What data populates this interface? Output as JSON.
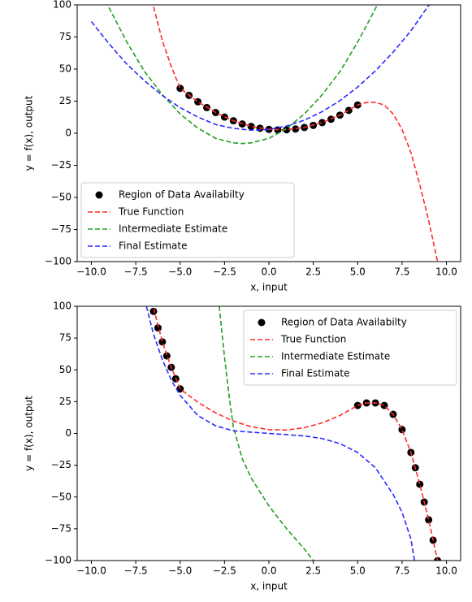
{
  "chart_data": [
    {
      "type": "line",
      "ylabel": "y = f(x), output",
      "xlabel": "x, input",
      "xlim": [
        -10.8,
        10.8
      ],
      "ylim": [
        -100,
        100
      ],
      "xticks": [
        {
          "value": -10,
          "label": "−10.0"
        },
        {
          "value": -7.5,
          "label": "−7.5"
        },
        {
          "value": -5,
          "label": "−5.0"
        },
        {
          "value": -2.5,
          "label": "−2.5"
        },
        {
          "value": 0,
          "label": "0.0"
        },
        {
          "value": 2.5,
          "label": "2.5"
        },
        {
          "value": 5,
          "label": "5.0"
        },
        {
          "value": 7.5,
          "label": "7.5"
        },
        {
          "value": 10,
          "label": "10.0"
        }
      ],
      "yticks": [
        {
          "value": -100,
          "label": "−100"
        },
        {
          "value": -75,
          "label": "−75"
        },
        {
          "value": -50,
          "label": "−50"
        },
        {
          "value": -25,
          "label": "−25"
        },
        0,
        25,
        50,
        75,
        100
      ],
      "legend": "lower left",
      "series": [
        {
          "name": "Region of Data Availabilty",
          "style": "scatter",
          "color": "#000000",
          "x": [
            -5,
            -4.5,
            -4,
            -3.5,
            -3,
            -2.5,
            -2,
            -1.5,
            -1,
            -0.5,
            0,
            0.5,
            1,
            1.5,
            2,
            2.5,
            3,
            3.5,
            4,
            4.5,
            5
          ],
          "values": [
            35,
            29.5,
            24.5,
            20,
            16.1,
            12.6,
            9.7,
            7.2,
            5.3,
            3.9,
            3,
            2.6,
            2.7,
            3.3,
            4.5,
            6.1,
            8.3,
            10.9,
            14.1,
            17.8,
            22
          ]
        },
        {
          "name": "True Function",
          "style": "dashed",
          "color": "#ff2a2a",
          "x": [
            -6.6,
            -6,
            -5.5,
            -5,
            -4,
            -3,
            -2,
            -1,
            0,
            1,
            2,
            3,
            4,
            5,
            5.5,
            6,
            6.5,
            7,
            7.5,
            8,
            8.5,
            9,
            9.5
          ],
          "values": [
            104,
            72,
            52,
            35,
            24.5,
            16.1,
            9.7,
            5.3,
            3,
            2.7,
            4.5,
            8.3,
            14.1,
            22,
            24,
            24,
            22,
            15,
            3,
            -15,
            -40,
            -68,
            -100
          ]
        },
        {
          "name": "Intermediate Estimate",
          "style": "dashed",
          "color": "#22a022",
          "x": [
            -9.2,
            -8,
            -7,
            -6,
            -5,
            -4,
            -3,
            -2,
            -1.5,
            -1,
            0,
            1,
            2,
            3,
            4,
            5,
            6,
            6.2
          ],
          "values": [
            103,
            71,
            48,
            30,
            15,
            4,
            -4,
            -7.5,
            -8,
            -7.5,
            -4,
            3.7,
            15,
            30,
            48,
            71,
            97,
            103
          ]
        },
        {
          "name": "Final Estimate",
          "style": "dashed",
          "color": "#2a2aff",
          "x": [
            -10,
            -9,
            -8,
            -7,
            -6,
            -5,
            -4,
            -3,
            -2,
            -1,
            -0.8,
            0,
            1,
            2,
            3,
            4,
            5,
            6,
            7,
            8,
            9,
            9.3
          ],
          "values": [
            87,
            69.6,
            53.8,
            40.8,
            29.4,
            19.9,
            12.6,
            6.8,
            3.8,
            2.4,
            2.4,
            3,
            5.6,
            10.2,
            16.8,
            25.4,
            36,
            48.6,
            63.2,
            79.8,
            99.6,
            102
          ]
        }
      ]
    },
    {
      "type": "line",
      "ylabel": "y = f(x), output",
      "xlabel": "x, input",
      "xlim": [
        -10.8,
        10.8
      ],
      "ylim": [
        -100,
        100
      ],
      "xticks": [
        {
          "value": -10,
          "label": "−10.0"
        },
        {
          "value": -7.5,
          "label": "−7.5"
        },
        {
          "value": -5,
          "label": "−5.0"
        },
        {
          "value": -2.5,
          "label": "−2.5"
        },
        {
          "value": 0,
          "label": "0.0"
        },
        {
          "value": 2.5,
          "label": "2.5"
        },
        {
          "value": 5,
          "label": "5.0"
        },
        {
          "value": 7.5,
          "label": "7.5"
        },
        {
          "value": 10,
          "label": "10.0"
        }
      ],
      "yticks": [
        {
          "value": -100,
          "label": "−100"
        },
        {
          "value": -75,
          "label": "−75"
        },
        {
          "value": -50,
          "label": "−50"
        },
        {
          "value": -25,
          "label": "−25"
        },
        0,
        25,
        50,
        75,
        100
      ],
      "legend": "upper right",
      "series": [
        {
          "name": "Region of Data Availabilty",
          "style": "scatter",
          "color": "#000000",
          "x": [
            -6.5,
            -6.25,
            -6,
            -5.75,
            -5.5,
            -5.25,
            -5,
            5,
            5.5,
            6,
            6.5,
            7,
            7.5,
            8,
            8.25,
            8.5,
            8.75,
            9,
            9.25,
            9.5
          ],
          "values": [
            96,
            83,
            72,
            61,
            52,
            43,
            35,
            22,
            24,
            24,
            22,
            15,
            3,
            -15,
            -27,
            -40,
            -54,
            -68,
            -84,
            -100
          ]
        },
        {
          "name": "True Function",
          "style": "dashed",
          "color": "#ff2a2a",
          "x": [
            -6.6,
            -6,
            -5.5,
            -5,
            -4,
            -3,
            -2,
            -1,
            0,
            1,
            2,
            3,
            4,
            5,
            5.5,
            6,
            6.5,
            7,
            7.5,
            8,
            8.5,
            9,
            9.5
          ],
          "values": [
            104,
            72,
            52,
            35,
            24.5,
            16.1,
            9.7,
            5.3,
            3,
            2.7,
            4.5,
            8.3,
            14.1,
            22,
            24,
            24,
            22,
            15,
            3,
            -15,
            -40,
            -68,
            -100
          ]
        },
        {
          "name": "Intermediate Estimate",
          "style": "dashed",
          "color": "#22a022",
          "x": [
            -2.8,
            -2.5,
            -2.2,
            -2,
            -1.5,
            -1,
            0,
            1,
            2,
            2.5
          ],
          "values": [
            100,
            60,
            25,
            5,
            -20,
            -35,
            -57,
            -75,
            -91,
            -100
          ]
        },
        {
          "name": "Final Estimate",
          "style": "dashed",
          "color": "#2a2aff",
          "x": [
            -6.9,
            -6.5,
            -6,
            -5.5,
            -5,
            -4,
            -3,
            -2,
            -1,
            0,
            1,
            2,
            3,
            4,
            5,
            6,
            7,
            7.5,
            8,
            8.2
          ],
          "values": [
            100,
            78,
            58,
            42,
            30,
            14,
            6,
            2,
            1,
            0,
            -1,
            -2,
            -4,
            -8,
            -15,
            -27,
            -48,
            -62,
            -83,
            -100
          ]
        }
      ]
    }
  ]
}
